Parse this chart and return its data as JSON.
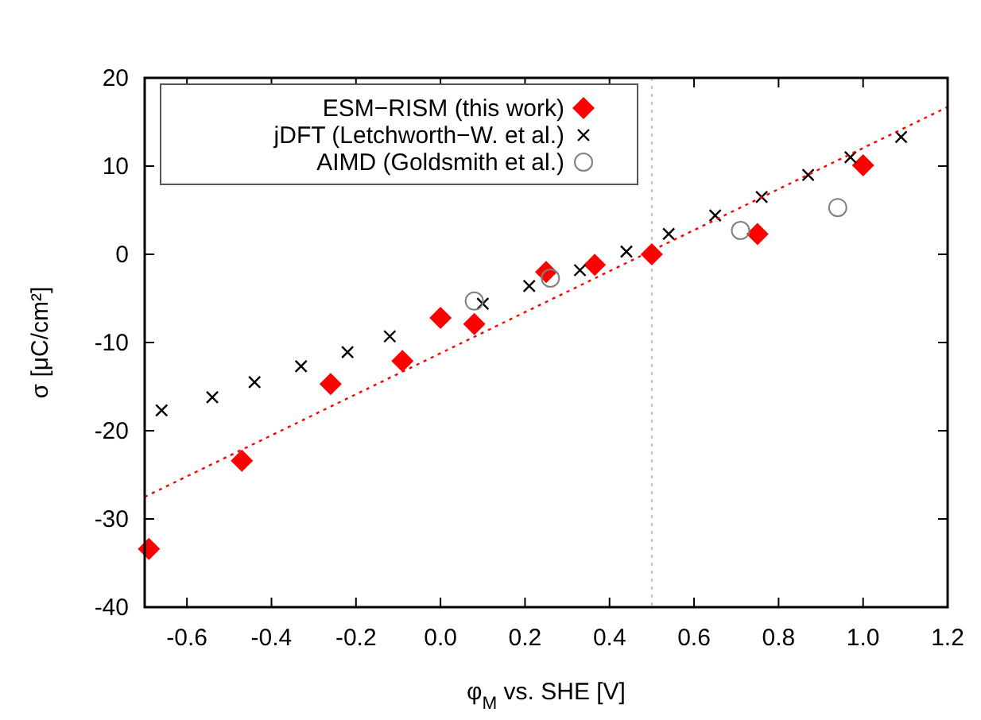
{
  "chart_data": {
    "type": "scatter",
    "xlabel": "φ$_{M}$ vs. SHE [V]",
    "ylabel": "σ [μC/cm²]",
    "xlim": [
      -0.7,
      1.2
    ],
    "xticks": [
      -0.6,
      -0.4,
      -0.2,
      {
        "value": 0,
        "label": "0.0"
      },
      0.2,
      0.4,
      0.6,
      0.8,
      {
        "value": 1,
        "label": "1.0"
      },
      1.2
    ],
    "ylim": [
      -40,
      20
    ],
    "yticks": [
      -40,
      -30,
      -20,
      -10,
      0,
      10,
      20
    ],
    "legend": "top left",
    "grid": false,
    "ref_lines": [
      {
        "axis": "x",
        "value": 0.5,
        "color": "#c0c0c0",
        "line_style": "dotted"
      }
    ],
    "series": [
      {
        "name": "ESM−RISM (this work)",
        "color": "#ff0000",
        "marker": "diamond",
        "x": [
          -0.69,
          -0.47,
          -0.26,
          -0.09,
          0.0,
          0.08,
          0.25,
          0.365,
          0.5,
          0.75,
          1.0
        ],
        "values": [
          -33.4,
          -23.4,
          -14.7,
          -12.1,
          -7.2,
          -7.9,
          -2.0,
          -1.2,
          0.0,
          2.3,
          10.1
        ]
      },
      {
        "name": "jDFT (Letchworth−W. et al.)",
        "color": "#000000",
        "marker": "cross",
        "x": [
          -0.66,
          -0.54,
          -0.44,
          -0.33,
          -0.22,
          -0.12,
          0.1,
          0.21,
          0.33,
          0.44,
          0.54,
          0.65,
          0.76,
          0.87,
          0.97,
          1.09
        ],
        "values": [
          -17.7,
          -16.2,
          -14.5,
          -12.7,
          -11.1,
          -9.3,
          -5.6,
          -3.6,
          -1.8,
          0.3,
          2.3,
          4.4,
          6.5,
          9.0,
          11.0,
          13.3
        ]
      },
      {
        "name": "AIMD (Goldsmith et al.)",
        "color": "#808080",
        "marker": "circle",
        "x": [
          0.08,
          0.26,
          0.71,
          0.94
        ],
        "values": [
          -5.3,
          -2.7,
          2.7,
          5.3
        ]
      },
      {
        "type": "line",
        "color": "#ff0000",
        "line_style": "dotted",
        "marker": "none",
        "x": [
          -0.7,
          1.2
        ],
        "values": [
          -27.5,
          16.7
        ]
      }
    ]
  }
}
